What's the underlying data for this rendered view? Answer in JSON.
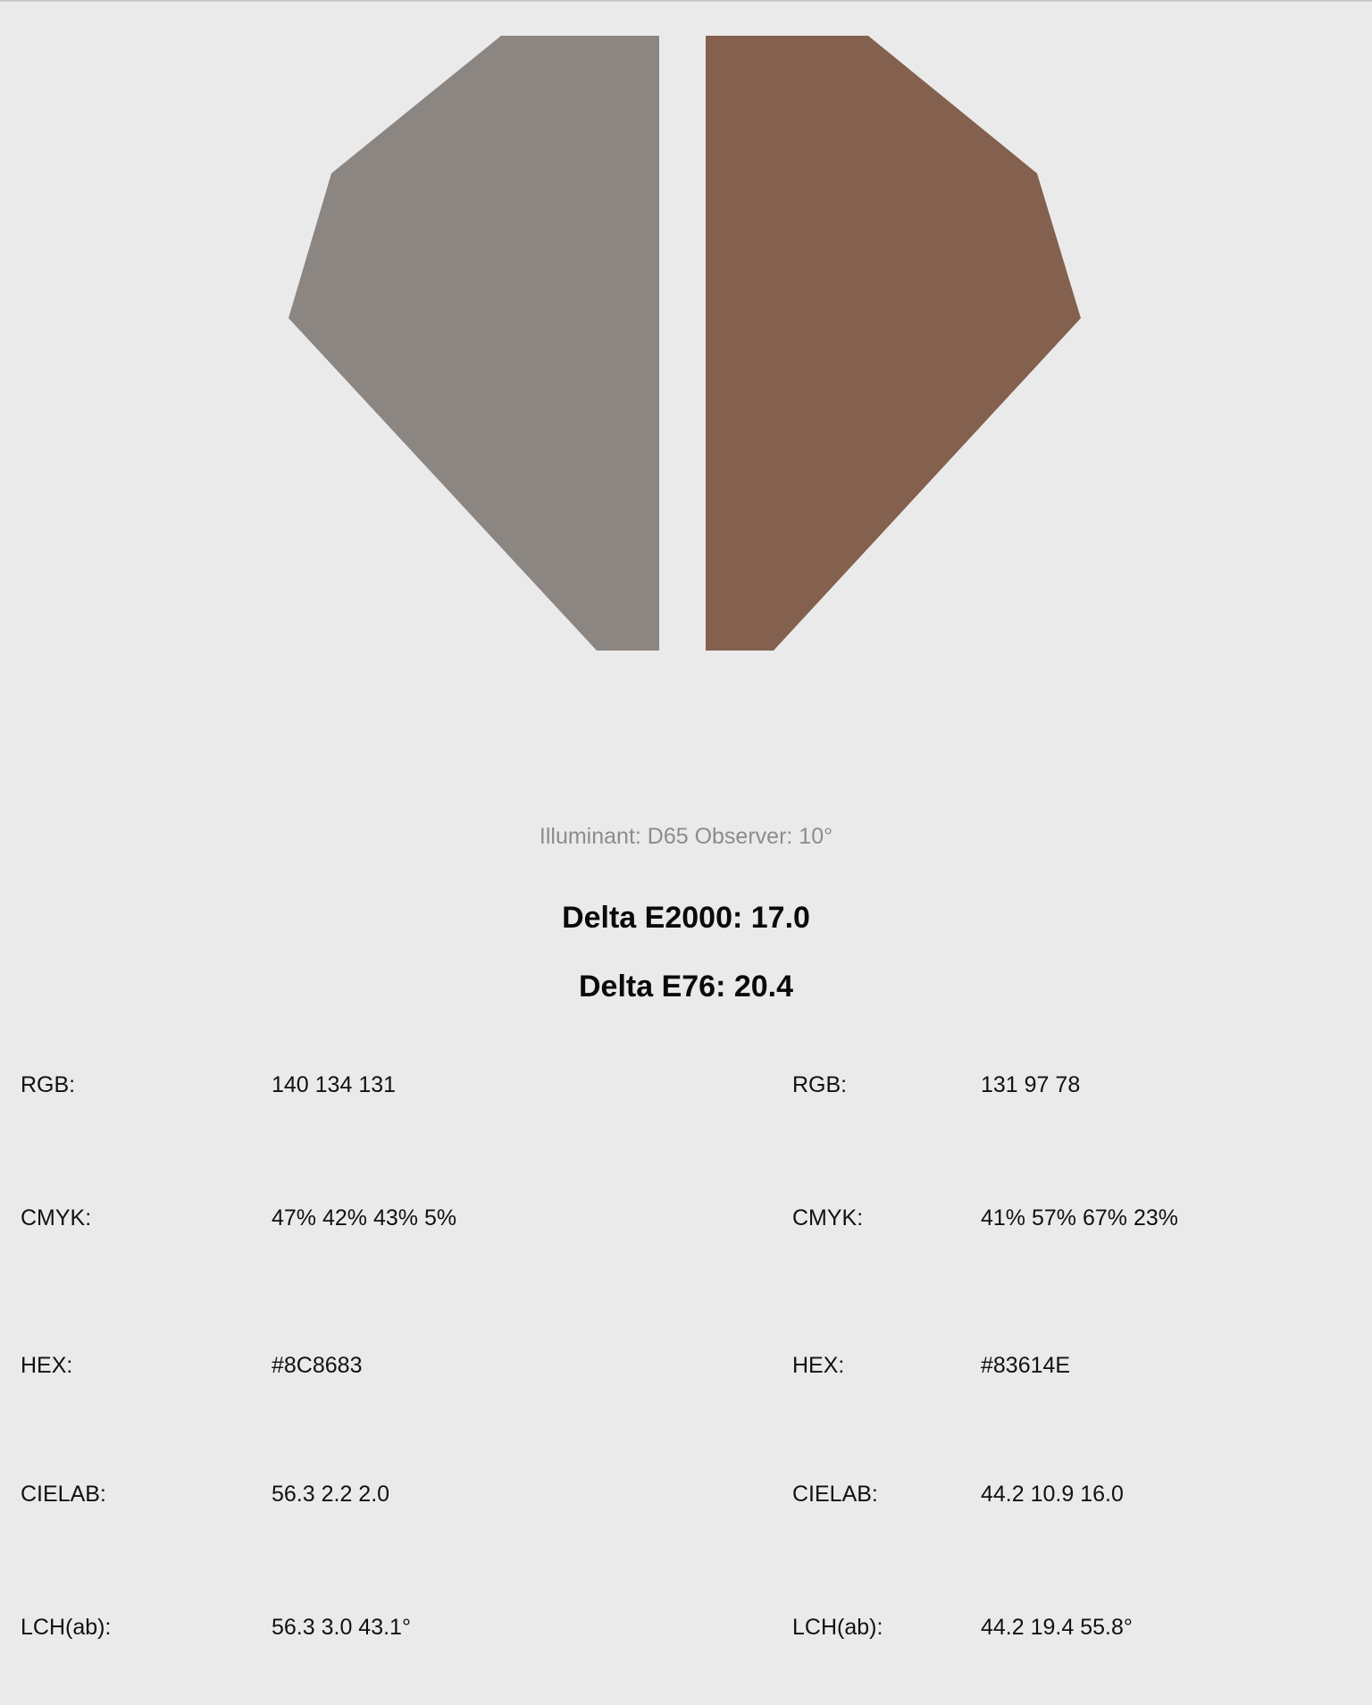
{
  "swatches": {
    "left": {
      "color": "#8C8683"
    },
    "right": {
      "color": "#83614E"
    }
  },
  "illuminant": "Illuminant: D65 Observer: 10°",
  "delta_e2000": "Delta E2000: 17.0",
  "delta_e76": "Delta E76: 20.4",
  "rows": [
    {
      "label_left": "RGB:",
      "value_left": "140 134 131",
      "label_right": "RGB:",
      "value_right": "131 97 78"
    },
    {
      "label_left": "CMYK:",
      "value_left": "47% 42% 43% 5%",
      "label_right": "CMYK:",
      "value_right": "41% 57% 67% 23%"
    },
    {
      "label_left": "HEX:",
      "value_left": "#8C8683",
      "label_right": "HEX:",
      "value_right": "#83614E"
    },
    {
      "label_left": "CIELAB:",
      "value_left": "56.3 2.2 2.0",
      "label_right": "CIELAB:",
      "value_right": "44.2 10.9 16.0"
    },
    {
      "label_left": "LCH(ab):",
      "value_left": "56.3 3.0 43.1°",
      "label_right": "LCH(ab):",
      "value_right": "44.2 19.4 55.8°"
    }
  ]
}
